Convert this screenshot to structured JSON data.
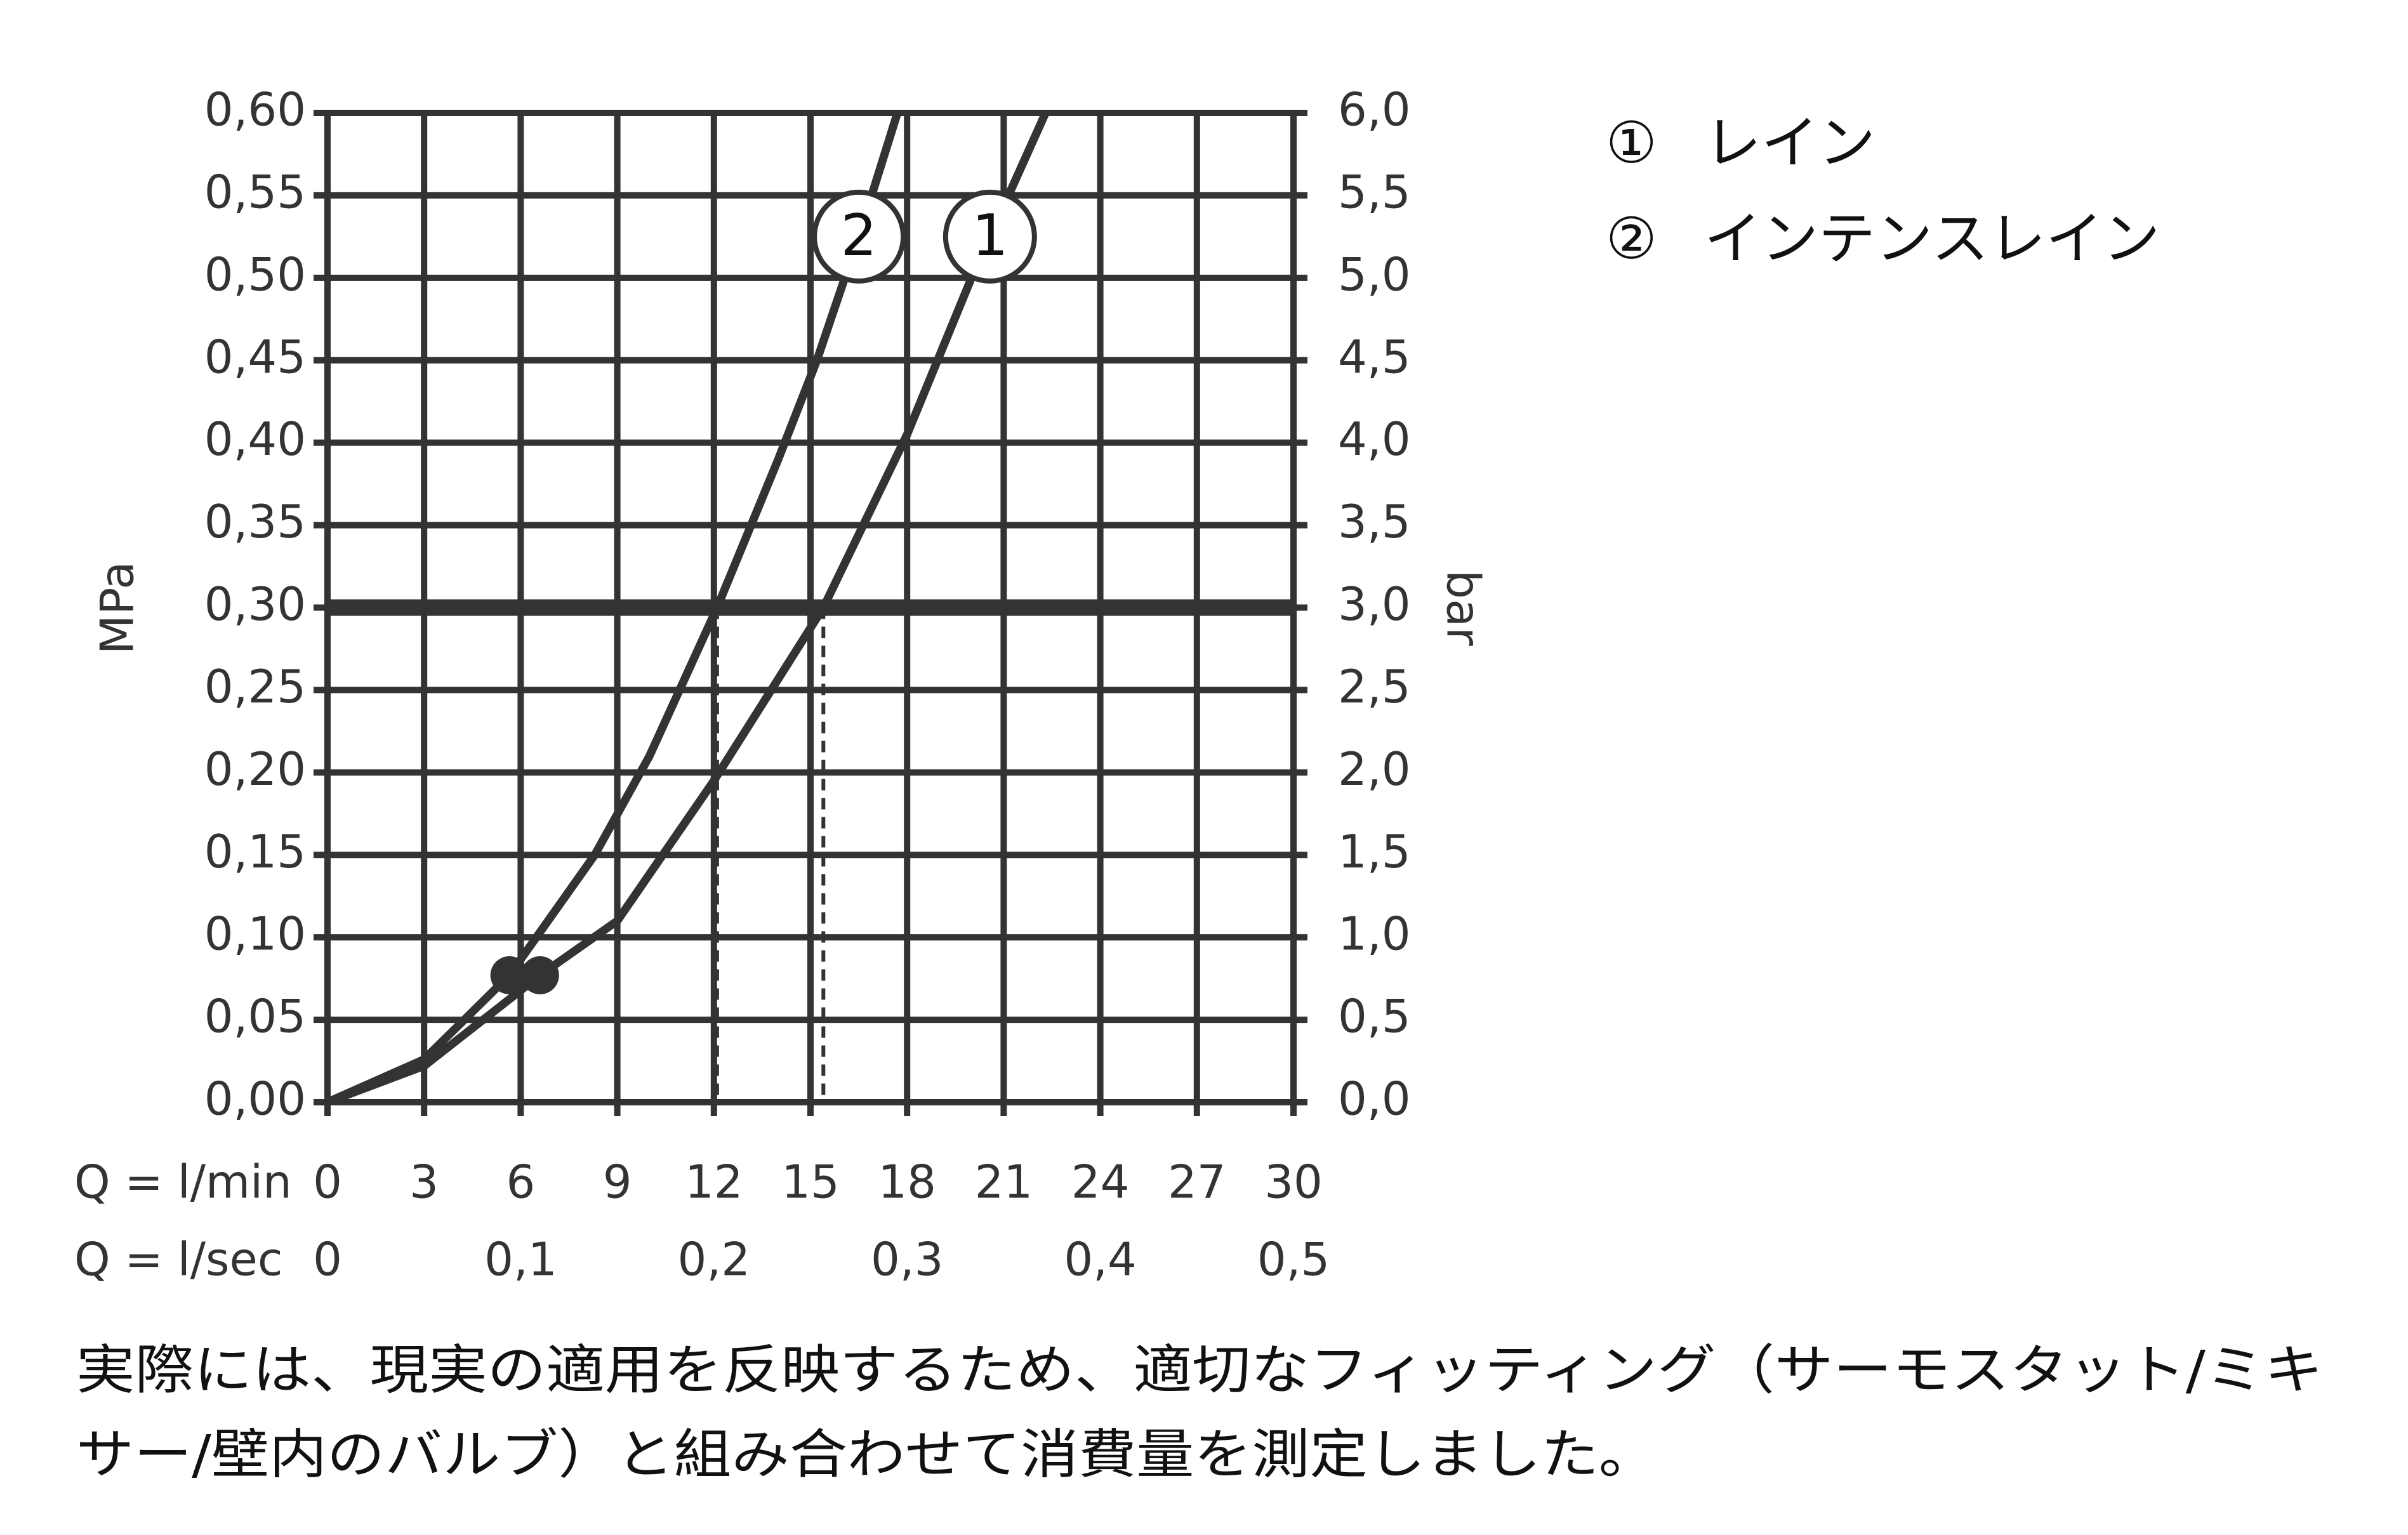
{
  "chart_data": {
    "type": "line",
    "xlabel": "Q = l/min",
    "x2label": "Q = l/sec",
    "ylabel": "MPa",
    "y2label": "bar",
    "xlim": [
      0,
      30
    ],
    "xticks": [
      0,
      3,
      6,
      9,
      12,
      15,
      18,
      21,
      24,
      27,
      30
    ],
    "x2lim": [
      0,
      0.5
    ],
    "x2ticks": [
      0,
      {
        "value": 0.1,
        "label": "0,1"
      },
      {
        "value": 0.2,
        "label": "0,2"
      },
      {
        "value": 0.3,
        "label": "0,3"
      },
      {
        "value": 0.4,
        "label": "0,4"
      },
      {
        "value": 0.5,
        "label": "0,5"
      }
    ],
    "ylim": [
      0,
      0.6
    ],
    "yticks": [
      {
        "value": 0,
        "label": "0,00"
      },
      {
        "value": 0.05,
        "label": "0,05"
      },
      {
        "value": 0.1,
        "label": "0,10"
      },
      {
        "value": 0.15,
        "label": "0,15"
      },
      {
        "value": 0.2,
        "label": "0,20"
      },
      {
        "value": 0.25,
        "label": "0,25"
      },
      {
        "value": 0.3,
        "label": "0,30"
      },
      {
        "value": 0.35,
        "label": "0,35"
      },
      {
        "value": 0.4,
        "label": "0,40"
      },
      {
        "value": 0.45,
        "label": "0,45"
      },
      {
        "value": 0.5,
        "label": "0,50"
      },
      {
        "value": 0.55,
        "label": "0,55"
      },
      {
        "value": 0.6,
        "label": "0,60"
      }
    ],
    "y2lim": [
      0,
      6
    ],
    "y2ticks": [
      {
        "value": 0,
        "label": "0,0"
      },
      {
        "value": 0.5,
        "label": "0,5"
      },
      {
        "value": 1,
        "label": "1,0"
      },
      {
        "value": 1.5,
        "label": "1,5"
      },
      {
        "value": 2,
        "label": "2,0"
      },
      {
        "value": 2.5,
        "label": "2,5"
      },
      {
        "value": 3,
        "label": "3,0"
      },
      {
        "value": 3.5,
        "label": "3,5"
      },
      {
        "value": 4,
        "label": "4,0"
      },
      {
        "value": 4.5,
        "label": "4,5"
      },
      {
        "value": 5,
        "label": "5,0"
      },
      {
        "value": 5.5,
        "label": "5,5"
      },
      {
        "value": 6,
        "label": "6,0"
      }
    ],
    "grid": true,
    "color": "#333333",
    "hline": 0.3,
    "series": [
      {
        "name": "レイン",
        "symbol": "①",
        "label": "1",
        "color": "#333333",
        "x": [
          0,
          3,
          6.6,
          9,
          12,
          15.4,
          18,
          20,
          22.3
        ],
        "values": [
          0,
          0.022,
          0.077,
          0.11,
          0.195,
          0.3,
          0.405,
          0.5,
          0.6
        ],
        "marker": {
          "x": 6.6,
          "y": 0.077
        },
        "crossing_x": 15.4
      },
      {
        "name": "インテンスレイン",
        "symbol": "②",
        "label": "2",
        "color": "#333333",
        "x": [
          0,
          3,
          5.65,
          8.3,
          10,
          12.1,
          14,
          15.2,
          16.5,
          17.7
        ],
        "values": [
          0,
          0.026,
          0.077,
          0.15,
          0.21,
          0.3,
          0.39,
          0.45,
          0.525,
          0.6
        ],
        "marker": {
          "x": 5.65,
          "y": 0.077
        },
        "crossing_x": 12.1
      }
    ],
    "footnote": [
      "実際には、現実の適用を反映するため、適切なフィッティング（サーモスタット/ミキ",
      "サー/壁内のバルブ）と組み合わせて消費量を測定しました。"
    ]
  }
}
